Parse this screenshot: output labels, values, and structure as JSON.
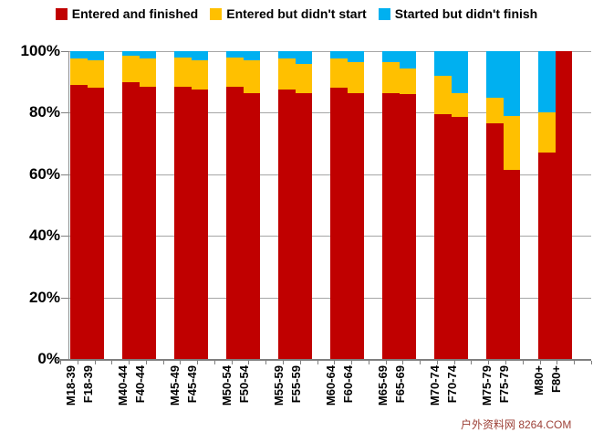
{
  "chart_data": {
    "type": "bar",
    "stacked": true,
    "title": "",
    "xlabel": "",
    "ylabel": "",
    "ylim": [
      0,
      100
    ],
    "grid": true,
    "legend_position": "top",
    "categories": [
      "M18-39",
      "F18-39",
      "M40-44",
      "F40-44",
      "M45-49",
      "F45-49",
      "M50-54",
      "F50-54",
      "M55-59",
      "F55-59",
      "M60-64",
      "F60-64",
      "M65-69",
      "F65-69",
      "M70-74",
      "F70-74",
      "M75-79",
      "F75-79",
      "M80+",
      "F80+"
    ],
    "series": [
      {
        "name": "Entered and finished",
        "color": "#c00000",
        "values": [
          89,
          88,
          90,
          88.5,
          88.5,
          87.5,
          88.5,
          86.5,
          87.5,
          86.5,
          88,
          86.5,
          86.5,
          86,
          79.5,
          78.5,
          76.5,
          61.5,
          67,
          100
        ]
      },
      {
        "name": "Entered but didn't start",
        "color": "#ffc000",
        "values": [
          8.5,
          9,
          8.5,
          9,
          9.5,
          9.5,
          9.5,
          10.5,
          10,
          9.5,
          9.5,
          10,
          10,
          8.5,
          12.5,
          8,
          8.5,
          17.5,
          13,
          0
        ]
      },
      {
        "name": "Started but didn't finish",
        "color": "#00b0f0",
        "values": [
          2.5,
          3,
          1.5,
          2.5,
          2,
          3,
          2,
          3,
          2.5,
          4,
          2.5,
          3.5,
          3.5,
          5.5,
          8,
          13.5,
          15,
          21,
          20,
          0
        ]
      }
    ],
    "yticks": [
      {
        "label": "0%",
        "value": 0
      },
      {
        "label": "20%",
        "value": 20
      },
      {
        "label": "40%",
        "value": 40
      },
      {
        "label": "60%",
        "value": 60
      },
      {
        "label": "80%",
        "value": 80
      },
      {
        "label": "100%",
        "value": 100
      }
    ]
  },
  "watermark": {
    "text": "户外资料网 8264.COM"
  },
  "colors": {
    "background": "#ffffff",
    "grid": "#a6a6a6",
    "axis": "#7f7f7f",
    "text": "#000000"
  }
}
